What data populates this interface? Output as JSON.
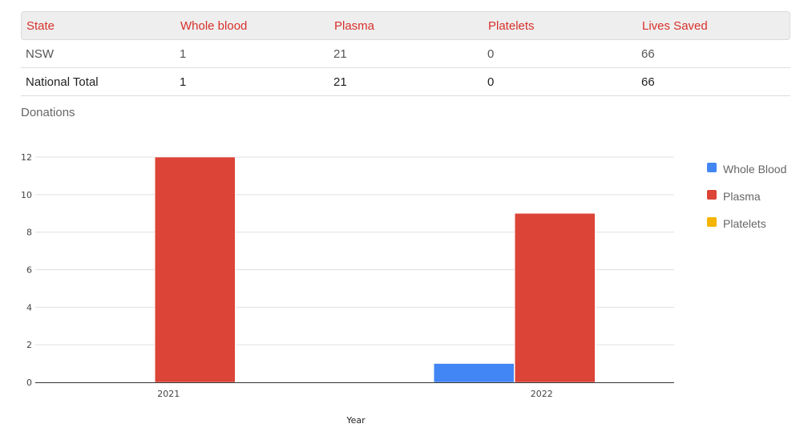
{
  "table": {
    "headers": [
      "State",
      "Whole blood",
      "Plasma",
      "Platelets",
      "Lives Saved"
    ],
    "rows": [
      [
        "NSW",
        "1",
        "21",
        "0",
        "66"
      ],
      [
        "National Total",
        "1",
        "21",
        "0",
        "66"
      ]
    ]
  },
  "section_title": "Donations",
  "colors": {
    "whole_blood": "#4285f4",
    "plasma": "#db4437",
    "platelets": "#f4b400",
    "header_text": "#d7312b"
  },
  "chart_data": {
    "type": "bar",
    "title": "",
    "xlabel": "Year",
    "ylabel": "",
    "categories": [
      "2021",
      "2022"
    ],
    "ylim": [
      0,
      12
    ],
    "yticks": [
      0,
      2,
      4,
      6,
      8,
      10,
      12
    ],
    "grid": true,
    "legend_position": "right",
    "series": [
      {
        "name": "Whole Blood",
        "color": "#4285f4",
        "values": [
          0,
          1
        ]
      },
      {
        "name": "Plasma",
        "color": "#db4437",
        "values": [
          12,
          9
        ]
      },
      {
        "name": "Platelets",
        "color": "#f4b400",
        "values": [
          0,
          0
        ]
      }
    ]
  }
}
